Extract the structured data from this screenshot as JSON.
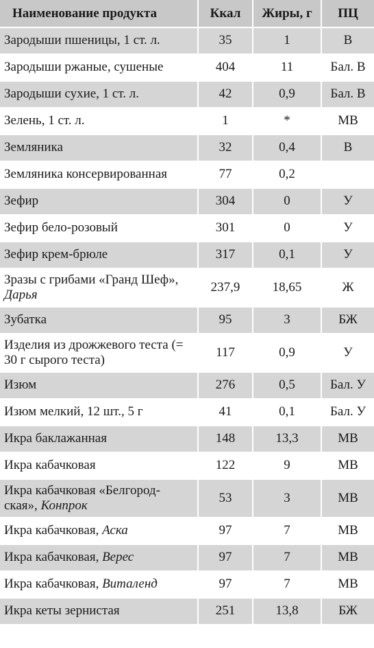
{
  "headers": {
    "name": "Наименование продукта",
    "kcal": "Ккал",
    "fat": "Жиры, г",
    "pc": "ПЦ"
  },
  "rows": [
    {
      "name": "Зародыши пшеницы, 1 ст. л.",
      "sub": "",
      "kcal": "35",
      "fat": "1",
      "pc": "В"
    },
    {
      "name": "Зародыши ржаные, сушеные",
      "sub": "",
      "kcal": "404",
      "fat": "11",
      "pc": "Бал. В"
    },
    {
      "name": "Зародыши сухие, 1 ст. л.",
      "sub": "",
      "kcal": "42",
      "fat": "0,9",
      "pc": "Бал. В"
    },
    {
      "name": "Зелень, 1 ст. л.",
      "sub": "",
      "kcal": "1",
      "fat": "*",
      "pc": "МВ"
    },
    {
      "name": "Земляника",
      "sub": "",
      "kcal": "32",
      "fat": "0,4",
      "pc": "В"
    },
    {
      "name": "Земляника консервированная",
      "sub": "",
      "kcal": "77",
      "fat": "0,2",
      "pc": ""
    },
    {
      "name": "Зефир",
      "sub": "",
      "kcal": "304",
      "fat": "0",
      "pc": "У"
    },
    {
      "name": "Зефир бело-розовый",
      "sub": "",
      "kcal": "301",
      "fat": "0",
      "pc": "У"
    },
    {
      "name": "Зефир крем-брюле",
      "sub": "",
      "kcal": "317",
      "fat": "0,1",
      "pc": "У"
    },
    {
      "name": "Зразы с грибами «Гранд Шеф»,",
      "sub": "Дарья",
      "kcal": "237,9",
      "fat": "18,65",
      "pc": "Ж"
    },
    {
      "name": "Зубатка",
      "sub": "",
      "kcal": "95",
      "fat": "3",
      "pc": "БЖ"
    },
    {
      "name": "Изделия из дрожжевого теста (= 30 г сырого теста)",
      "sub": "",
      "kcal": "117",
      "fat": "0,9",
      "pc": "У"
    },
    {
      "name": "Изюм",
      "sub": "",
      "kcal": "276",
      "fat": "0,5",
      "pc": "Бал. У"
    },
    {
      "name": "Изюм мелкий, 12 шт., 5 г",
      "sub": "",
      "kcal": "41",
      "fat": "0,1",
      "pc": "Бал. У"
    },
    {
      "name": "Икра баклажанная",
      "sub": "",
      "kcal": "148",
      "fat": "13,3",
      "pc": "МВ"
    },
    {
      "name": "Икра кабачковая",
      "sub": "",
      "kcal": "122",
      "fat": "9",
      "pc": "МВ"
    },
    {
      "name": "Икра кабачковая «Белгород-ская»,",
      "sub": "Конпрок",
      "kcal": "53",
      "fat": "3",
      "pc": "МВ"
    },
    {
      "name": "Икра кабачковая,",
      "sub": "Аска",
      "kcal": "97",
      "fat": "7",
      "pc": "МВ"
    },
    {
      "name": "Икра кабачковая,",
      "sub": "Верес",
      "kcal": "97",
      "fat": "7",
      "pc": "МВ"
    },
    {
      "name": "Икра кабачковая,",
      "sub": "Виталенд",
      "kcal": "97",
      "fat": "7",
      "pc": "МВ"
    },
    {
      "name": "Икра кеты зернистая",
      "sub": "",
      "kcal": "251",
      "fat": "13,8",
      "pc": "БЖ"
    }
  ]
}
